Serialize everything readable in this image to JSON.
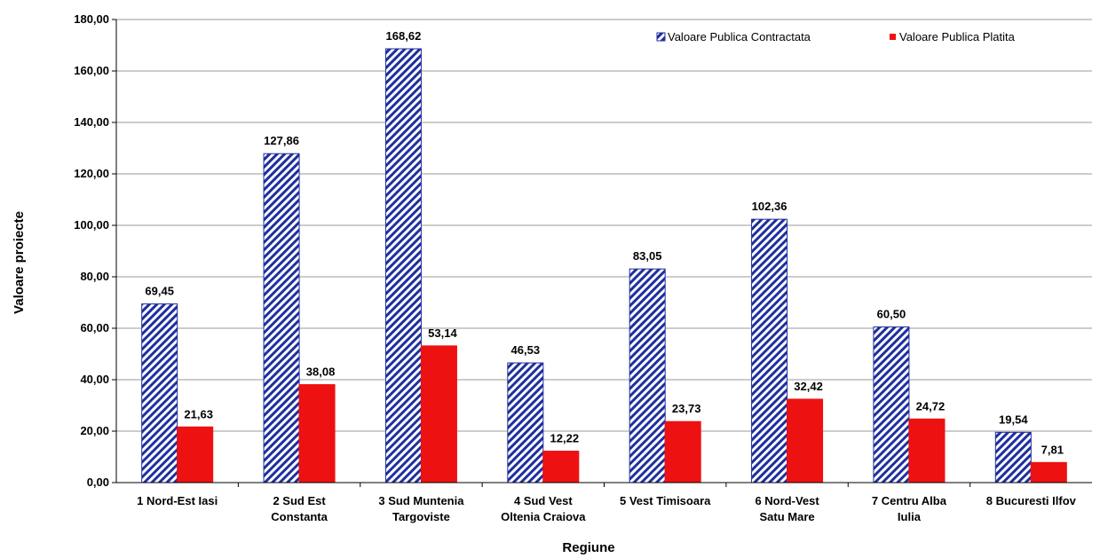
{
  "chart_data": {
    "type": "bar",
    "title": "",
    "xlabel": "Regiune",
    "ylabel": "Valoare proiecte",
    "ylim": [
      0,
      180
    ],
    "yticks": [
      "0,00",
      "20,00",
      "40,00",
      "60,00",
      "80,00",
      "100,00",
      "120,00",
      "140,00",
      "160,00",
      "180,00"
    ],
    "ystep": 20,
    "grid": true,
    "legend_position": "top-right",
    "categories": [
      [
        "1 Nord-Est Iasi"
      ],
      [
        "2 Sud Est",
        "Constanta"
      ],
      [
        "3 Sud Muntenia",
        "Targoviste"
      ],
      [
        "4 Sud Vest",
        "Oltenia Craiova"
      ],
      [
        "5 Vest Timisoara"
      ],
      [
        "6 Nord-Vest",
        "Satu Mare"
      ],
      [
        "7 Centru Alba",
        "Iulia"
      ],
      [
        "8 Bucuresti Ilfov"
      ]
    ],
    "series": [
      {
        "name": "Valoare Publica Contractata",
        "color": "#1f2f9e",
        "pattern": "diagonal-hatch",
        "values": [
          69.45,
          127.86,
          168.62,
          46.53,
          83.05,
          102.36,
          60.5,
          19.54
        ],
        "labels": [
          "69,45",
          "127,86",
          "168,62",
          "46,53",
          "83,05",
          "102,36",
          "60,50",
          "19,54"
        ]
      },
      {
        "name": "Valoare Publica Platita",
        "color": "#ee1111",
        "pattern": "solid",
        "values": [
          21.63,
          38.08,
          53.14,
          12.22,
          23.73,
          32.42,
          24.72,
          7.81
        ],
        "labels": [
          "21,63",
          "38,08",
          "53,14",
          "12,22",
          "23,73",
          "32,42",
          "24,72",
          "7,81"
        ]
      }
    ]
  }
}
